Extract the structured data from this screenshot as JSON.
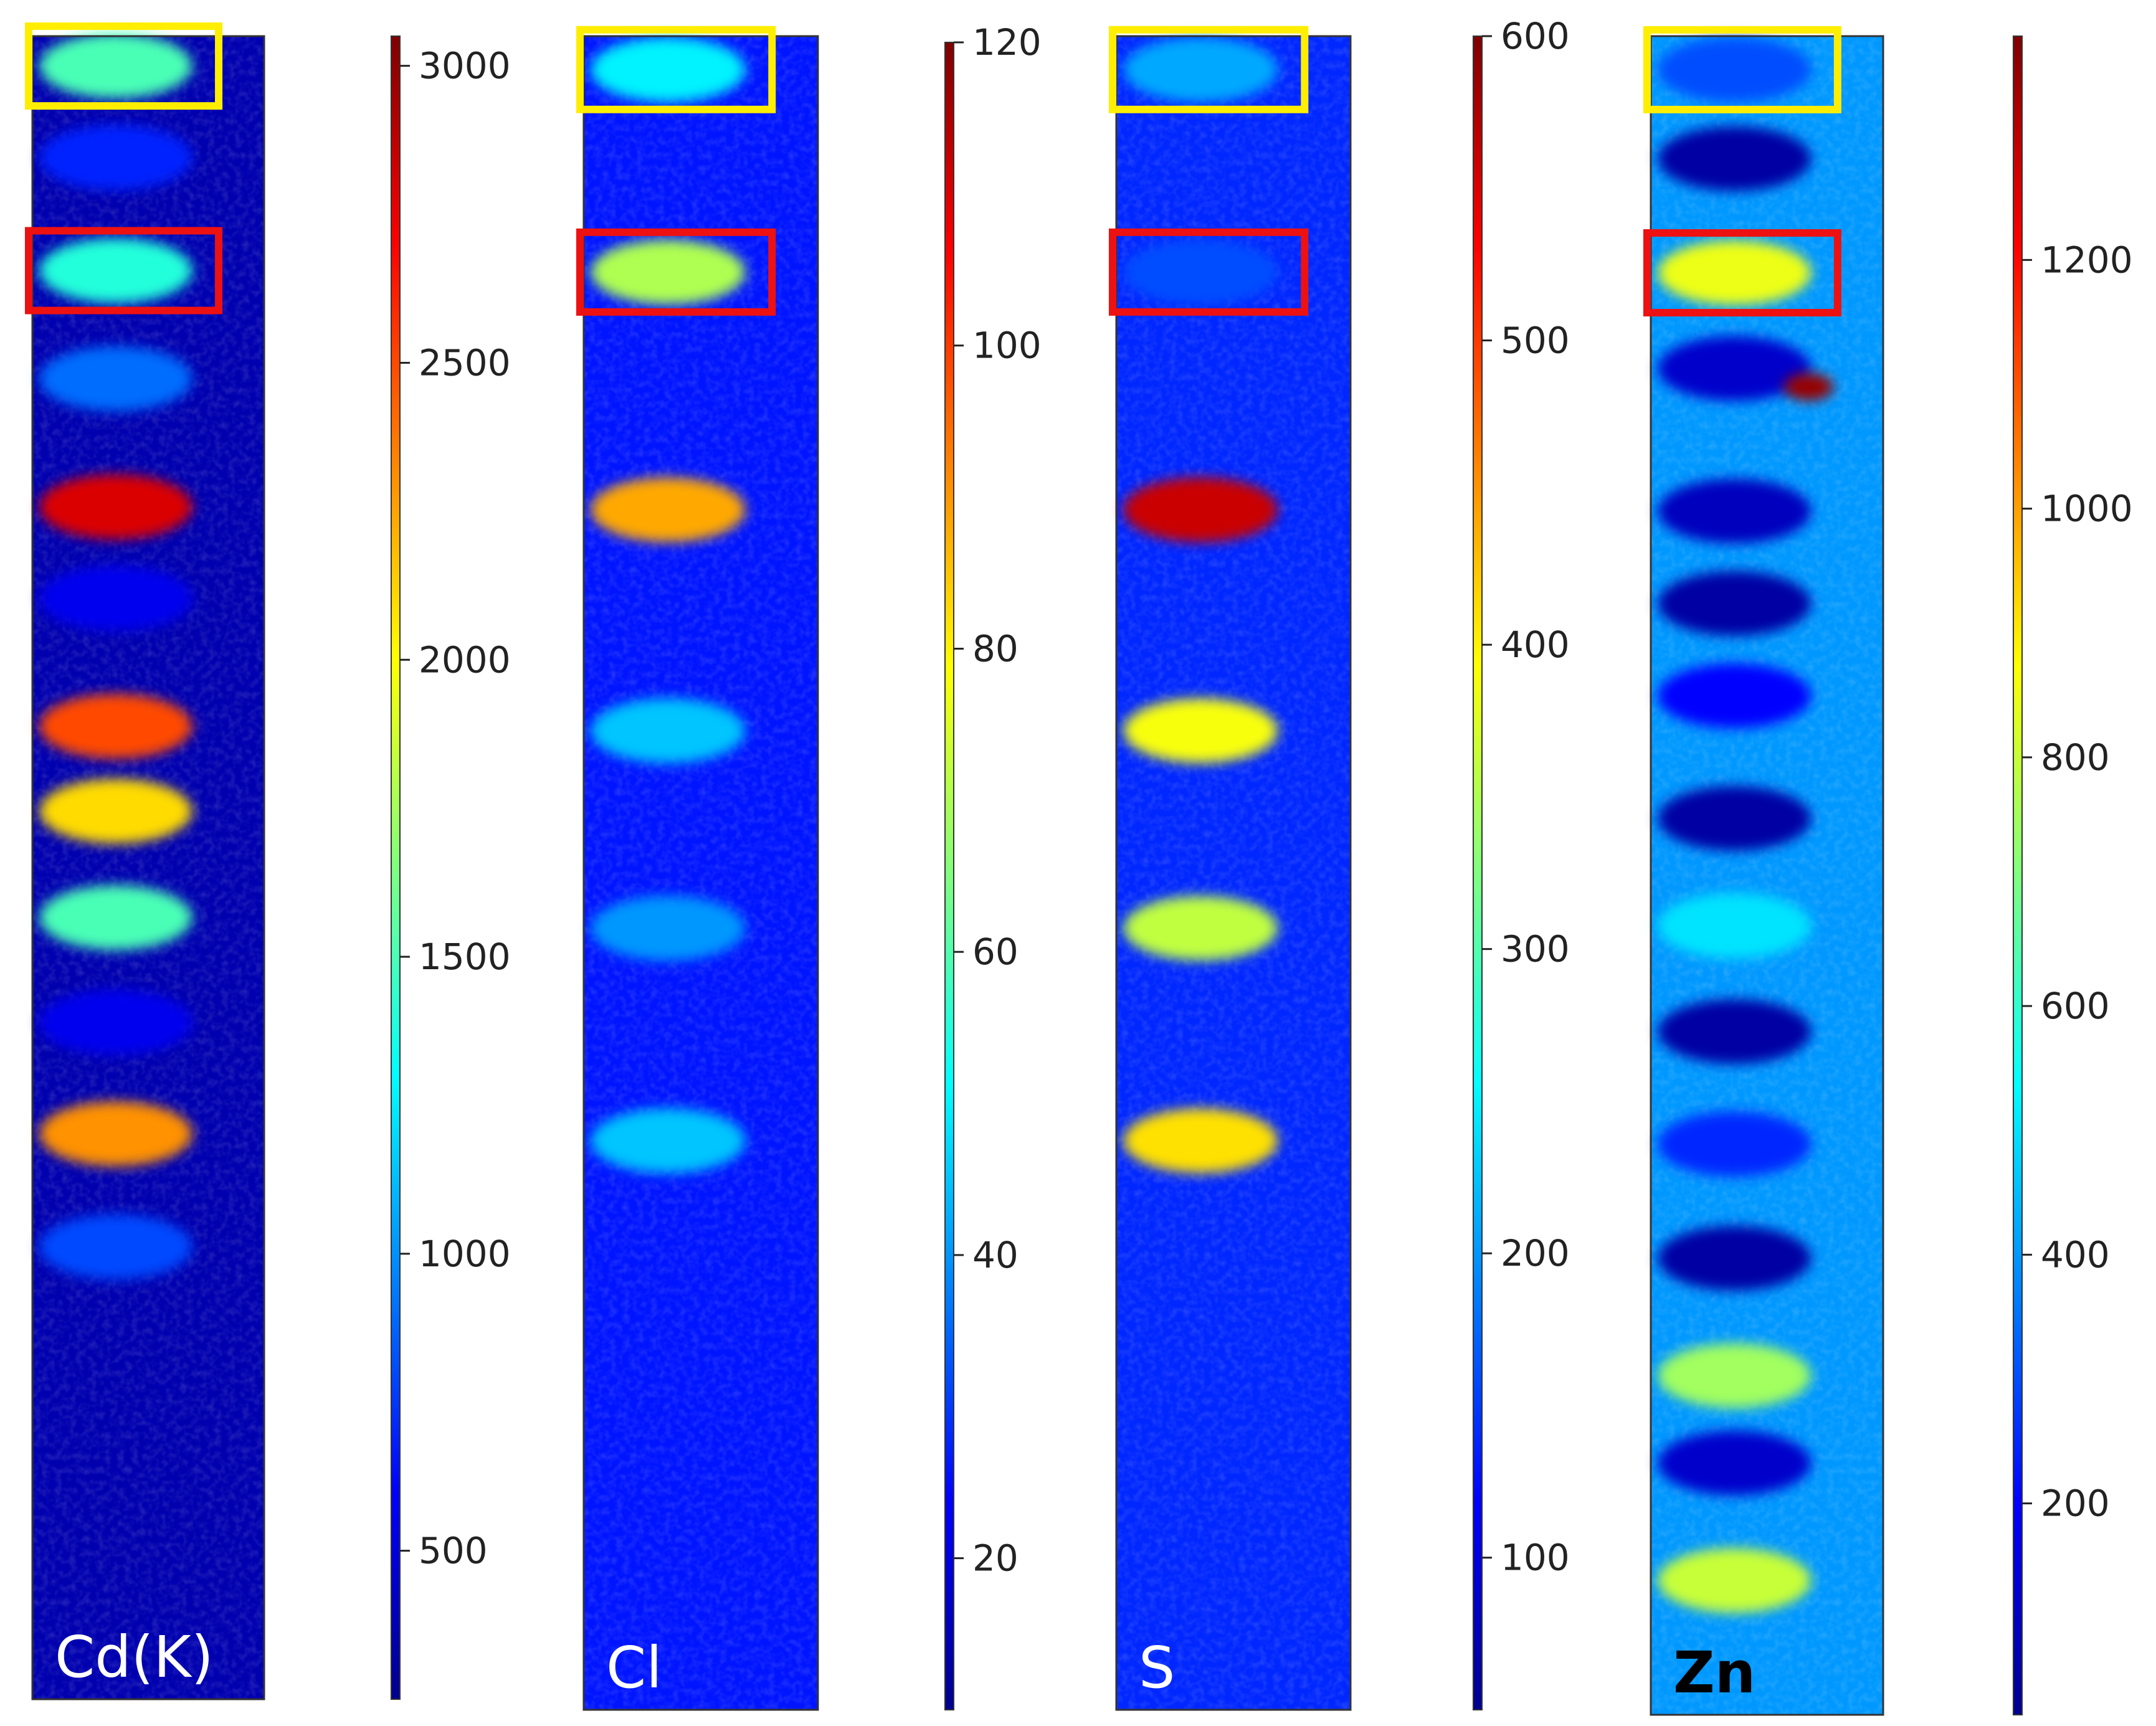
{
  "chart_data": {
    "type": "heatmap",
    "description_note": "",
    "panels": [
      {
        "element": "Cd(K)",
        "label_color": "#ffffff",
        "colorbar": {
          "min": 250,
          "max": 3050,
          "ticks": [
            500,
            1000,
            1500,
            2000,
            2500,
            3000
          ]
        },
        "background_value": 350,
        "spots": [
          {
            "y": 0.018,
            "v": 1500
          },
          {
            "y": 0.073,
            "v": 700
          },
          {
            "y": 0.141,
            "v": 1400
          },
          {
            "y": 0.206,
            "v": 900
          },
          {
            "y": 0.283,
            "v": 2800
          },
          {
            "y": 0.338,
            "v": 550
          },
          {
            "y": 0.415,
            "v": 2500
          },
          {
            "y": 0.466,
            "v": 2100
          },
          {
            "y": 0.53,
            "v": 1500
          },
          {
            "y": 0.593,
            "v": 550
          },
          {
            "y": 0.66,
            "v": 2300
          },
          {
            "y": 0.728,
            "v": 800
          }
        ],
        "highlight_boxes": [
          {
            "color": "#ffee00",
            "spot_index": 0
          },
          {
            "color": "#ee1111",
            "spot_index": 2
          }
        ]
      },
      {
        "element": "Cl",
        "label_color": "#ffffff",
        "colorbar": {
          "min": 10,
          "max": 120,
          "ticks": [
            20,
            40,
            60,
            80,
            100,
            120
          ]
        },
        "background_value": 26,
        "spots": [
          {
            "y": 0.02,
            "v": 50
          },
          {
            "y": 0.141,
            "v": 70
          },
          {
            "y": 0.283,
            "v": 88
          },
          {
            "y": 0.415,
            "v": 45
          },
          {
            "y": 0.533,
            "v": 40
          },
          {
            "y": 0.66,
            "v": 45
          }
        ],
        "highlight_boxes": [
          {
            "color": "#ffee00",
            "spot_index": 0
          },
          {
            "color": "#ee1111",
            "spot_index": 1
          }
        ]
      },
      {
        "element": "S",
        "label_color": "#ffffff",
        "colorbar": {
          "min": 50,
          "max": 600,
          "ticks": [
            100,
            200,
            300,
            400,
            500,
            600
          ]
        },
        "background_value": 140,
        "spots": [
          {
            "y": 0.02,
            "v": 210
          },
          {
            "y": 0.141,
            "v": 160
          },
          {
            "y": 0.283,
            "v": 560
          },
          {
            "y": 0.415,
            "v": 390
          },
          {
            "y": 0.533,
            "v": 360
          },
          {
            "y": 0.66,
            "v": 410
          }
        ],
        "highlight_boxes": [
          {
            "color": "#ffee00",
            "spot_index": 0
          },
          {
            "color": "#ee1111",
            "spot_index": 1
          }
        ]
      },
      {
        "element": "Zn",
        "label_color": "#000000",
        "colorbar": {
          "min": 30,
          "max": 1380,
          "ticks": [
            200,
            400,
            600,
            800,
            1000,
            1200
          ]
        },
        "background_value": 400,
        "spots": [
          {
            "y": 0.02,
            "v": 300
          },
          {
            "y": 0.073,
            "v": 60
          },
          {
            "y": 0.141,
            "v": 850
          },
          {
            "y": 0.198,
            "v": 120
          },
          {
            "y": 0.209,
            "v": 1350
          },
          {
            "y": 0.283,
            "v": 100
          },
          {
            "y": 0.338,
            "v": 60
          },
          {
            "y": 0.393,
            "v": 200
          },
          {
            "y": 0.466,
            "v": 60
          },
          {
            "y": 0.53,
            "v": 500
          },
          {
            "y": 0.593,
            "v": 60
          },
          {
            "y": 0.66,
            "v": 250
          },
          {
            "y": 0.728,
            "v": 60
          },
          {
            "y": 0.798,
            "v": 750
          },
          {
            "y": 0.85,
            "v": 120
          },
          {
            "y": 0.92,
            "v": 800
          }
        ],
        "highlight_boxes": [
          {
            "color": "#ffee00",
            "spot_index": 0
          },
          {
            "color": "#ee1111",
            "spot_index": 2
          }
        ]
      }
    ]
  }
}
